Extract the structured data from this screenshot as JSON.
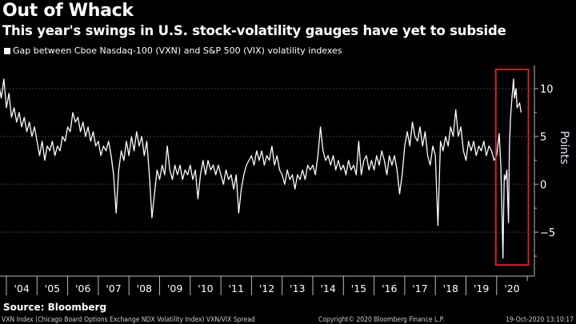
{
  "chart_data": {
    "type": "line",
    "title": "Out of Whack",
    "subtitle": "This year's swings in U.S. stock-volatility gauges have yet to subside",
    "ylabel": "Points",
    "ylim": [
      -9,
      12.5
    ],
    "yticks": [
      10,
      5,
      0,
      -5
    ],
    "tick_labels_x": [
      "'04",
      "'05",
      "'06",
      "'07",
      "'08",
      "'09",
      "'10",
      "'11",
      "'12",
      "'13",
      "'14",
      "'15",
      "'16",
      "'17",
      "'18",
      "'19",
      "'20"
    ],
    "grid": "horizontal dotted",
    "legend_placement": "top-left",
    "series": [
      {
        "name": "Gap between Cboe Nasdaq-100 (VXN) and S&P 500 (VIX) volatility indexes",
        "color": "#ffffff",
        "points": [
          [
            "2003-10",
            10.5
          ],
          [
            "2003-11",
            9
          ],
          [
            "2003-12",
            11
          ],
          [
            "2004-01",
            8
          ],
          [
            "2004-02",
            9.5
          ],
          [
            "2004-03",
            7
          ],
          [
            "2004-04",
            8
          ],
          [
            "2004-05",
            6.5
          ],
          [
            "2004-06",
            7.5
          ],
          [
            "2004-07",
            6
          ],
          [
            "2004-08",
            7
          ],
          [
            "2004-09",
            5.5
          ],
          [
            "2004-10",
            6.5
          ],
          [
            "2004-11",
            5
          ],
          [
            "2004-12",
            6
          ],
          [
            "2005-01",
            4.5
          ],
          [
            "2005-02",
            3
          ],
          [
            "2005-03",
            4.5
          ],
          [
            "2005-04",
            2.5
          ],
          [
            "2005-05",
            4
          ],
          [
            "2005-06",
            3.5
          ],
          [
            "2005-07",
            4.5
          ],
          [
            "2005-08",
            3
          ],
          [
            "2005-09",
            4
          ],
          [
            "2005-10",
            3.5
          ],
          [
            "2005-11",
            5
          ],
          [
            "2005-12",
            4.5
          ],
          [
            "2006-01",
            6
          ],
          [
            "2006-02",
            5.5
          ],
          [
            "2006-03",
            7.5
          ],
          [
            "2006-04",
            6.5
          ],
          [
            "2006-05",
            7
          ],
          [
            "2006-06",
            5.5
          ],
          [
            "2006-07",
            6.5
          ],
          [
            "2006-08",
            5
          ],
          [
            "2006-09",
            6
          ],
          [
            "2006-10",
            4.5
          ],
          [
            "2006-11",
            5.5
          ],
          [
            "2006-12",
            4
          ],
          [
            "2007-01",
            4.5
          ],
          [
            "2007-02",
            3
          ],
          [
            "2007-03",
            4
          ],
          [
            "2007-04",
            3.5
          ],
          [
            "2007-05",
            4.5
          ],
          [
            "2007-06",
            3
          ],
          [
            "2007-07",
            1
          ],
          [
            "2007-08",
            -3
          ],
          [
            "2007-09",
            1.5
          ],
          [
            "2007-10",
            3.5
          ],
          [
            "2007-11",
            2.5
          ],
          [
            "2007-12",
            4.5
          ],
          [
            "2008-01",
            3
          ],
          [
            "2008-02",
            5
          ],
          [
            "2008-03",
            3.5
          ],
          [
            "2008-04",
            5.5
          ],
          [
            "2008-05",
            4
          ],
          [
            "2008-06",
            5
          ],
          [
            "2008-07",
            3
          ],
          [
            "2008-08",
            4.5
          ],
          [
            "2008-09",
            1
          ],
          [
            "2008-10",
            -3.5
          ],
          [
            "2008-11",
            -1
          ],
          [
            "2008-12",
            1.5
          ],
          [
            "2009-01",
            0.5
          ],
          [
            "2009-02",
            2
          ],
          [
            "2009-03",
            1
          ],
          [
            "2009-04",
            4
          ],
          [
            "2009-05",
            1.5
          ],
          [
            "2009-06",
            0.5
          ],
          [
            "2009-07",
            2
          ],
          [
            "2009-08",
            1
          ],
          [
            "2009-09",
            2
          ],
          [
            "2009-10",
            0.5
          ],
          [
            "2009-11",
            1.5
          ],
          [
            "2009-12",
            1
          ],
          [
            "2010-01",
            2
          ],
          [
            "2010-02",
            0.5
          ],
          [
            "2010-03",
            1.5
          ],
          [
            "2010-04",
            -1.5
          ],
          [
            "2010-05",
            1
          ],
          [
            "2010-06",
            2.5
          ],
          [
            "2010-07",
            1
          ],
          [
            "2010-08",
            2.5
          ],
          [
            "2010-09",
            1.5
          ],
          [
            "2010-10",
            2
          ],
          [
            "2010-11",
            1
          ],
          [
            "2010-12",
            2
          ],
          [
            "2011-01",
            1
          ],
          [
            "2011-02",
            0
          ],
          [
            "2011-03",
            1.5
          ],
          [
            "2011-04",
            0.5
          ],
          [
            "2011-05",
            1
          ],
          [
            "2011-06",
            -0.5
          ],
          [
            "2011-07",
            1
          ],
          [
            "2011-08",
            -3
          ],
          [
            "2011-09",
            -0.5
          ],
          [
            "2011-10",
            1
          ],
          [
            "2011-11",
            2
          ],
          [
            "2011-12",
            2.5
          ],
          [
            "2012-01",
            3
          ],
          [
            "2012-02",
            2
          ],
          [
            "2012-03",
            3.5
          ],
          [
            "2012-04",
            2.5
          ],
          [
            "2012-05",
            3.5
          ],
          [
            "2012-06",
            2
          ],
          [
            "2012-07",
            3
          ],
          [
            "2012-08",
            2.5
          ],
          [
            "2012-09",
            4
          ],
          [
            "2012-10",
            2
          ],
          [
            "2012-11",
            3
          ],
          [
            "2012-12",
            1.5
          ],
          [
            "2013-01",
            1
          ],
          [
            "2013-02",
            0
          ],
          [
            "2013-03",
            1.5
          ],
          [
            "2013-04",
            0.5
          ],
          [
            "2013-05",
            1
          ],
          [
            "2013-06",
            -0.5
          ],
          [
            "2013-07",
            1
          ],
          [
            "2013-08",
            0.5
          ],
          [
            "2013-09",
            1.5
          ],
          [
            "2013-10",
            0.5
          ],
          [
            "2013-11",
            2
          ],
          [
            "2013-12",
            1.5
          ],
          [
            "2014-01",
            2
          ],
          [
            "2014-02",
            1
          ],
          [
            "2014-03",
            3
          ],
          [
            "2014-04",
            6
          ],
          [
            "2014-05",
            3.5
          ],
          [
            "2014-06",
            2.5
          ],
          [
            "2014-07",
            3
          ],
          [
            "2014-08",
            2
          ],
          [
            "2014-09",
            3
          ],
          [
            "2014-10",
            1.5
          ],
          [
            "2014-11",
            2.5
          ],
          [
            "2014-12",
            1.5
          ],
          [
            "2015-01",
            2
          ],
          [
            "2015-02",
            1
          ],
          [
            "2015-03",
            2.5
          ],
          [
            "2015-04",
            1.5
          ],
          [
            "2015-05",
            2
          ],
          [
            "2015-06",
            1
          ],
          [
            "2015-07",
            4.5
          ],
          [
            "2015-08",
            1
          ],
          [
            "2015-09",
            2.5
          ],
          [
            "2015-10",
            3
          ],
          [
            "2015-11",
            1.5
          ],
          [
            "2015-12",
            2.5
          ],
          [
            "2016-01",
            1.5
          ],
          [
            "2016-02",
            3
          ],
          [
            "2016-03",
            2
          ],
          [
            "2016-04",
            3.5
          ],
          [
            "2016-05",
            2.5
          ],
          [
            "2016-06",
            1
          ],
          [
            "2016-07",
            3
          ],
          [
            "2016-08",
            2
          ],
          [
            "2016-09",
            3
          ],
          [
            "2016-10",
            1.5
          ],
          [
            "2016-11",
            -1
          ],
          [
            "2016-12",
            1
          ],
          [
            "2017-01",
            4
          ],
          [
            "2017-02",
            5.5
          ],
          [
            "2017-03",
            4
          ],
          [
            "2017-04",
            6.5
          ],
          [
            "2017-05",
            5
          ],
          [
            "2017-06",
            4.5
          ],
          [
            "2017-07",
            6
          ],
          [
            "2017-08",
            4
          ],
          [
            "2017-09",
            5.5
          ],
          [
            "2017-10",
            3
          ],
          [
            "2017-11",
            2
          ],
          [
            "2017-12",
            4
          ],
          [
            "2018-01",
            3
          ],
          [
            "2018-02",
            -4.3
          ],
          [
            "2018-03",
            4.5
          ],
          [
            "2018-04",
            3.5
          ],
          [
            "2018-05",
            5
          ],
          [
            "2018-06",
            4
          ],
          [
            "2018-07",
            6
          ],
          [
            "2018-08",
            5
          ],
          [
            "2018-09",
            7.8
          ],
          [
            "2018-10",
            5
          ],
          [
            "2018-11",
            6
          ],
          [
            "2018-12",
            3.5
          ],
          [
            "2019-01",
            2.5
          ],
          [
            "2019-02",
            4.5
          ],
          [
            "2019-03",
            3.5
          ],
          [
            "2019-04",
            4.5
          ],
          [
            "2019-05",
            3
          ],
          [
            "2019-06",
            4
          ],
          [
            "2019-07",
            3.5
          ],
          [
            "2019-08",
            4.5
          ],
          [
            "2019-09",
            3
          ],
          [
            "2019-10",
            4
          ],
          [
            "2019-11",
            3.5
          ],
          [
            "2019-12",
            2.5
          ],
          [
            "2020-01",
            3
          ],
          [
            "2020-02",
            5.3
          ],
          [
            "2020-02-20",
            2
          ],
          [
            "2020-03",
            -2
          ],
          [
            "2020-03-15",
            -7.7
          ],
          [
            "2020-03-25",
            -2
          ],
          [
            "2020-04",
            1
          ],
          [
            "2020-04-15",
            0.5
          ],
          [
            "2020-05",
            1.5
          ],
          [
            "2020-05-20",
            -4
          ],
          [
            "2020-06",
            4
          ],
          [
            "2020-06-15",
            7
          ],
          [
            "2020-07",
            9
          ],
          [
            "2020-07-20",
            11
          ],
          [
            "2020-08",
            9
          ],
          [
            "2020-08-20",
            10
          ],
          [
            "2020-09",
            8
          ],
          [
            "2020-10",
            8.5
          ],
          [
            "2020-10-19",
            7.5
          ]
        ]
      }
    ],
    "annotation": {
      "type": "highlight-box",
      "color": "#e8202a",
      "from": "2020-01",
      "to": "2020-10"
    }
  },
  "footer": {
    "source": "Source: Bloomberg",
    "description": "VXN Index (Chicago Board Options Exchange NDX Volatility Index) VXN/VIX Spread",
    "copyright": "Copyright© 2020 Bloomberg Finance L.P.",
    "timestamp": "19-Oct-2020 13:10:17"
  }
}
